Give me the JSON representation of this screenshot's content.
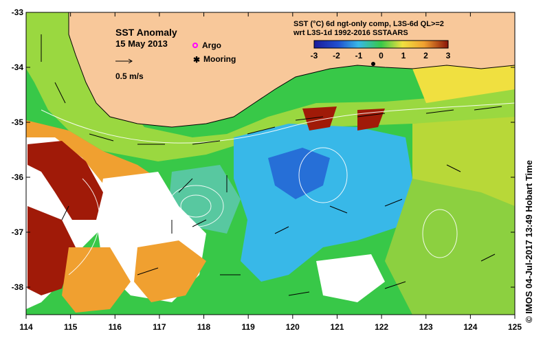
{
  "map": {
    "title": "SST Anomaly",
    "date": "15 May 2013",
    "vector_scale_label": "0.5 m/s",
    "legend": {
      "argo": "Argo",
      "mooring": "Mooring"
    },
    "product_line1": "SST (°C) 6d ngt-only comp, L3S-6d QL>=2",
    "product_line2": "wrt L3S-1d 1992-2016 SSTAARS",
    "colorbar_ticks": [
      "-3",
      "-2",
      "-1",
      "0",
      "1",
      "2",
      "3"
    ],
    "colorbar_range": [
      -3,
      3
    ],
    "credit": "©  IMOS 04-Jul-2017 13:49 Hobart Time",
    "lon_ticks": [
      "114",
      "115",
      "116",
      "117",
      "118",
      "119",
      "120",
      "121",
      "122",
      "123",
      "124",
      "125"
    ],
    "lat_ticks": [
      "-33",
      "-34",
      "-35",
      "-36",
      "-37",
      "-38"
    ],
    "colors": {
      "land": "#f8c89a",
      "anomaly_pos_strong": "#a01a08",
      "anomaly_pos": "#f0a030",
      "anomaly_warm": "#f0e040",
      "anomaly_neutral": "#38c848",
      "anomaly_cool": "#38b8e8",
      "anomaly_cold": "#2050d0",
      "no_data": "#ffffff",
      "argo_marker": "#ff00ff",
      "mooring_marker": "#000000"
    }
  }
}
